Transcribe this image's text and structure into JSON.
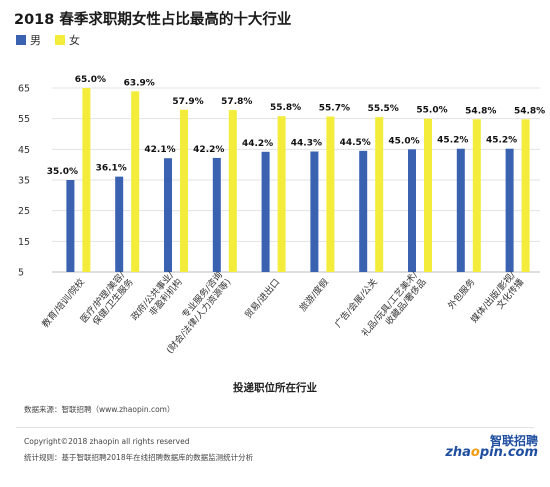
{
  "title": "2018 春季求职期女性占比最高的十大行业",
  "legend": [
    {
      "name": "男",
      "color": "#3a62b0"
    },
    {
      "name": "女",
      "color": "#f4ec3a"
    }
  ],
  "chart_data": {
    "type": "bar",
    "title": "2018 春季求职期女性占比最高的十大行业",
    "xlabel": "投递职位所在行业",
    "ylabel": "",
    "ylim": [
      5,
      65
    ],
    "yticks": [
      5,
      15,
      25,
      35,
      45,
      55,
      65
    ],
    "grid": true,
    "legend_position": "top-left",
    "categories": [
      "教育/培训/院校",
      "医疗/护理/美容/保健/卫生服务",
      "政府/公共事业/非盈利机构",
      "专业服务/咨询(财会/法律/人力资源等)",
      "贸易/进出口",
      "旅游/度假",
      "广告/会展/公关",
      "礼品/玩具/工艺美术/收藏品/奢侈品",
      "外包服务",
      "媒体/出版/影视/文化传播"
    ],
    "series": [
      {
        "name": "男",
        "color": "#3a62b0",
        "values": [
          35.0,
          36.1,
          42.1,
          42.2,
          44.2,
          44.3,
          44.5,
          45.0,
          45.2,
          45.2
        ],
        "labels": [
          "35.0%",
          "36.1%",
          "42.1%",
          "42.2%",
          "44.2%",
          "44.3%",
          "44.5%",
          "45.0%",
          "45.2%",
          "45.2%"
        ]
      },
      {
        "name": "女",
        "color": "#f4ec3a",
        "values": [
          65.0,
          63.9,
          57.9,
          57.8,
          55.8,
          55.7,
          55.5,
          55.0,
          54.8,
          54.8
        ],
        "labels": [
          "65.0%",
          "63.9%",
          "57.9%",
          "57.8%",
          "55.8%",
          "55.7%",
          "55.5%",
          "55.0%",
          "54.8%",
          "54.8%"
        ]
      }
    ],
    "category_label_lines": [
      [
        "教育/培训/院校"
      ],
      [
        "医疗/护理/美容/",
        "保健/卫生服务"
      ],
      [
        "政府/公共事业/",
        "非盈利机构"
      ],
      [
        "专业服务/咨询",
        "(财会/法律/人力资源等)"
      ],
      [
        "贸易/进出口"
      ],
      [
        "旅游/度假"
      ],
      [
        "广告/会展/公关"
      ],
      [
        "礼品/玩具/工艺美术/",
        "收藏品/奢侈品"
      ],
      [
        "外包服务"
      ],
      [
        "媒体/出版/影视/",
        "文化传播"
      ]
    ]
  },
  "footer": {
    "source": "数据来源：智联招聘（www.zhaopin.com）",
    "copyright": "Copyright©2018 zhaopin all rights reserved",
    "rule": "统计规则：基于智联招聘2018年在线招聘数据库的数据监测统计分析",
    "logo_cn": "智联招聘",
    "logo_en_a": "zha",
    "logo_en_b": "o",
    "logo_en_c": "pin.com"
  }
}
